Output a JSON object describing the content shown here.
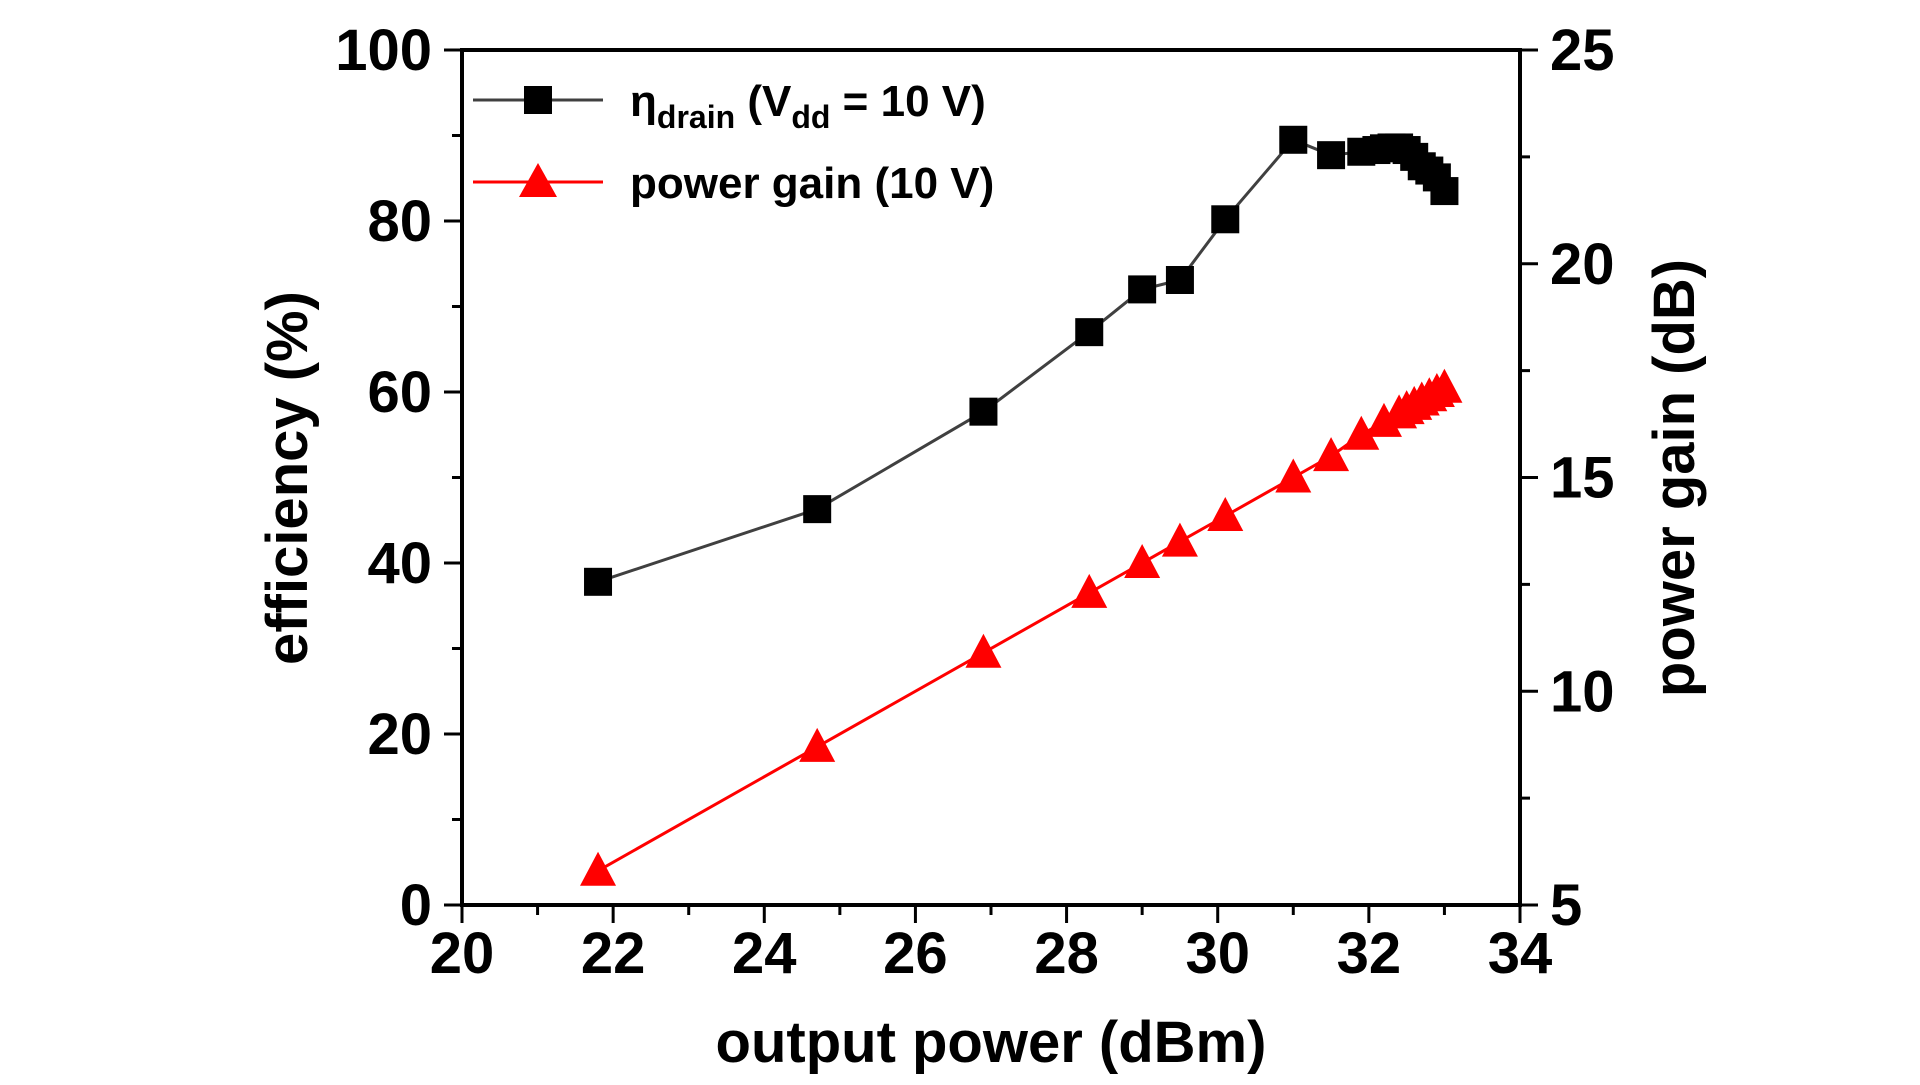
{
  "chart_data": {
    "type": "line",
    "xlabel": "output power (dBm)",
    "ylabel_left": "efficiency (%)",
    "ylabel_right": "power gain (dB)",
    "xlim": [
      20,
      34
    ],
    "ylim_left": [
      0,
      100
    ],
    "ylim_right": [
      5,
      25
    ],
    "x_ticks": [
      "20",
      "22",
      "24",
      "26",
      "28",
      "30",
      "32",
      "34"
    ],
    "y_left_ticks": [
      "0",
      "20",
      "40",
      "60",
      "80",
      "100"
    ],
    "y_right_ticks": [
      "5",
      "10",
      "15",
      "20",
      "25"
    ],
    "legend_position": "top-left",
    "grid": false,
    "series": [
      {
        "key": "efficiency",
        "axis": "left",
        "marker": "square",
        "color": "#000000",
        "line_color": "#404040",
        "legend": {
          "base": "η",
          "sub1": "drain",
          "mid": " (V",
          "sub2": "dd",
          "tail": " = 10 V)"
        },
        "x": [
          21.8,
          24.7,
          26.9,
          28.3,
          29.0,
          29.5,
          30.1,
          31.0,
          31.5,
          31.9,
          32.1,
          32.2,
          32.3,
          32.4,
          32.5,
          32.6,
          32.7,
          32.8,
          32.9,
          33.0
        ],
        "y": [
          37.8,
          46.3,
          57.7,
          67.0,
          72.0,
          73.1,
          80.2,
          89.5,
          87.7,
          88.1,
          88.3,
          88.5,
          88.6,
          88.6,
          88.3,
          87.5,
          86.4,
          85.9,
          85.1,
          83.5
        ]
      },
      {
        "key": "gain",
        "axis": "right",
        "marker": "triangle",
        "color": "#ff0000",
        "line_color": "#ff0000",
        "legend": {
          "base": "power gain (10 V)"
        },
        "x": [
          21.8,
          24.7,
          26.9,
          28.3,
          29.0,
          29.5,
          30.1,
          31.0,
          31.5,
          31.9,
          32.2,
          32.4,
          32.5,
          32.6,
          32.7,
          32.8,
          32.9,
          33.0
        ],
        "y": [
          5.8,
          8.7,
          10.9,
          12.3,
          13.0,
          13.5,
          14.1,
          15.0,
          15.5,
          16.0,
          16.3,
          16.5,
          16.6,
          16.7,
          16.8,
          16.9,
          17.0,
          17.1
        ]
      }
    ]
  }
}
